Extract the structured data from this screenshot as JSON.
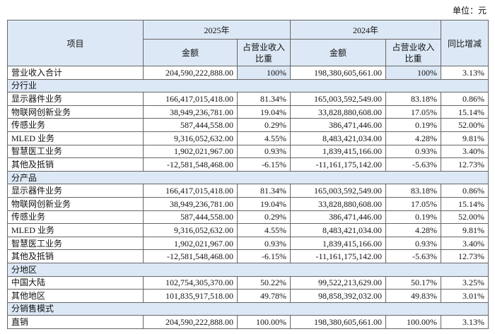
{
  "unit": "单位：元",
  "header": {
    "item": "项目",
    "years": [
      "2025年",
      "2024年"
    ],
    "sub_columns": [
      "金额",
      "占营业收入比重",
      "金额",
      "占营业收入比重"
    ],
    "yoy": "同比增减"
  },
  "rows": [
    [
      "营业收入合计",
      "204,590,222,888.00",
      "100%",
      "198,380,605,661.00",
      "100%",
      "3.13%"
    ],
    [
      "分行业"
    ],
    [
      "显示器件业务",
      "166,417,015,418.00",
      "81.34%",
      "165,003,592,549.00",
      "83.18%",
      "0.86%"
    ],
    [
      "物联网创新业务",
      "38,949,236,781.00",
      "19.04%",
      "33,828,880,608.00",
      "17.05%",
      "15.14%"
    ],
    [
      "传感业务",
      "587,444,558.00",
      "0.29%",
      "386,471,446.00",
      "0.19%",
      "52.00%"
    ],
    [
      "MLED 业务",
      "9,316,052,632.00",
      "4.55%",
      "8,483,421,034.00",
      "4.28%",
      "9.81%"
    ],
    [
      "智慧医工业务",
      "1,902,021,967.00",
      "0.93%",
      "1,839,415,166.00",
      "0.93%",
      "3.40%"
    ],
    [
      "其他及抵销",
      "-12,581,548,468.00",
      "-6.15%",
      "-11,161,175,142.00",
      "-5.63%",
      "12.73%"
    ],
    [
      "分产品"
    ],
    [
      "显示器件业务",
      "166,417,015,418.00",
      "81.34%",
      "165,003,592,549.00",
      "83.18%",
      "0.86%"
    ],
    [
      "物联网创新业务",
      "38,949,236,781.00",
      "19.04%",
      "33,828,880,608.00",
      "17.05%",
      "15.14%"
    ],
    [
      "传感业务",
      "587,444,558.00",
      "0.29%",
      "386,471,446.00",
      "0.19%",
      "52.00%"
    ],
    [
      "MLED 业务",
      "9,316,052,632.00",
      "4.55%",
      "8,483,421,034.00",
      "4.28%",
      "9.81%"
    ],
    [
      "智慧医工业务",
      "1,902,021,967.00",
      "0.93%",
      "1,839,415,166.00",
      "0.93%",
      "3.40%"
    ],
    [
      "其他及抵销",
      "-12,581,548,468.00",
      "-6.15%",
      "-11,161,175,142.00",
      "-5.63%",
      "12.73%"
    ],
    [
      "分地区"
    ],
    [
      "中国大陆",
      "102,754,305,370.00",
      "50.22%",
      "99,522,213,629.00",
      "50.17%",
      "3.25%"
    ],
    [
      "其他地区",
      "101,835,917,518.00",
      "49.78%",
      "98,858,392,032.00",
      "49.83%",
      "3.01%"
    ],
    [
      "分销售模式"
    ],
    [
      "直销",
      "204,590,222,888.00",
      "100.00%",
      "198,380,605,661.00",
      "100.00%",
      "3.13%"
    ]
  ]
}
